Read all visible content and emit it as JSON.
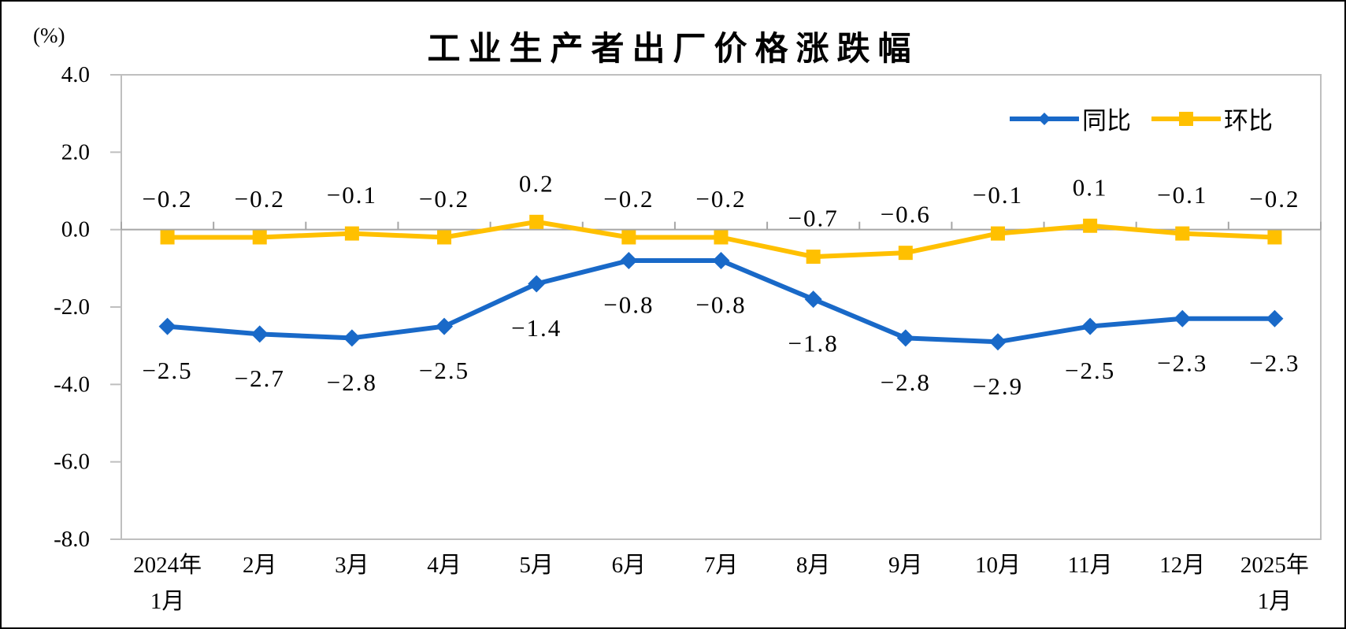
{
  "chart_data": {
    "type": "line",
    "title": "工业生产者出厂价格涨跌幅",
    "unit_label": "(%)",
    "grid": "zero-line-only",
    "legend_position": "top-right",
    "categories": [
      {
        "line1": "2024年",
        "line2": "1月"
      },
      {
        "line1": "2月"
      },
      {
        "line1": "3月"
      },
      {
        "line1": "4月"
      },
      {
        "line1": "5月"
      },
      {
        "line1": "6月"
      },
      {
        "line1": "7月"
      },
      {
        "line1": "8月"
      },
      {
        "line1": "9月"
      },
      {
        "line1": "10月"
      },
      {
        "line1": "11月"
      },
      {
        "line1": "12月"
      },
      {
        "line1": "2025年",
        "line2": "1月"
      }
    ],
    "series": [
      {
        "id": "yoy",
        "name": "同比",
        "color": "#1969C8",
        "marker": "diamond",
        "label_position": "below",
        "values": [
          -2.5,
          -2.7,
          -2.8,
          -2.5,
          -1.4,
          -0.8,
          -0.8,
          -1.8,
          -2.8,
          -2.9,
          -2.5,
          -2.3,
          -2.3
        ]
      },
      {
        "id": "mom",
        "name": "环比",
        "color": "#FFC000",
        "marker": "square",
        "label_position": "above",
        "values": [
          -0.2,
          -0.2,
          -0.1,
          -0.2,
          0.2,
          -0.2,
          -0.2,
          -0.7,
          -0.6,
          -0.1,
          0.1,
          -0.1,
          -0.2
        ]
      }
    ],
    "y_axis": {
      "min": -8,
      "max": 4,
      "step": 2,
      "tick_labels": [
        "4.0",
        "2.0",
        "0.0",
        "-2.0",
        "-4.0",
        "-6.0",
        "-8.0"
      ]
    },
    "colors": {
      "plot_border": "#BFBFBF",
      "zero_line": "#A6A6A6",
      "text": "#000000"
    }
  }
}
